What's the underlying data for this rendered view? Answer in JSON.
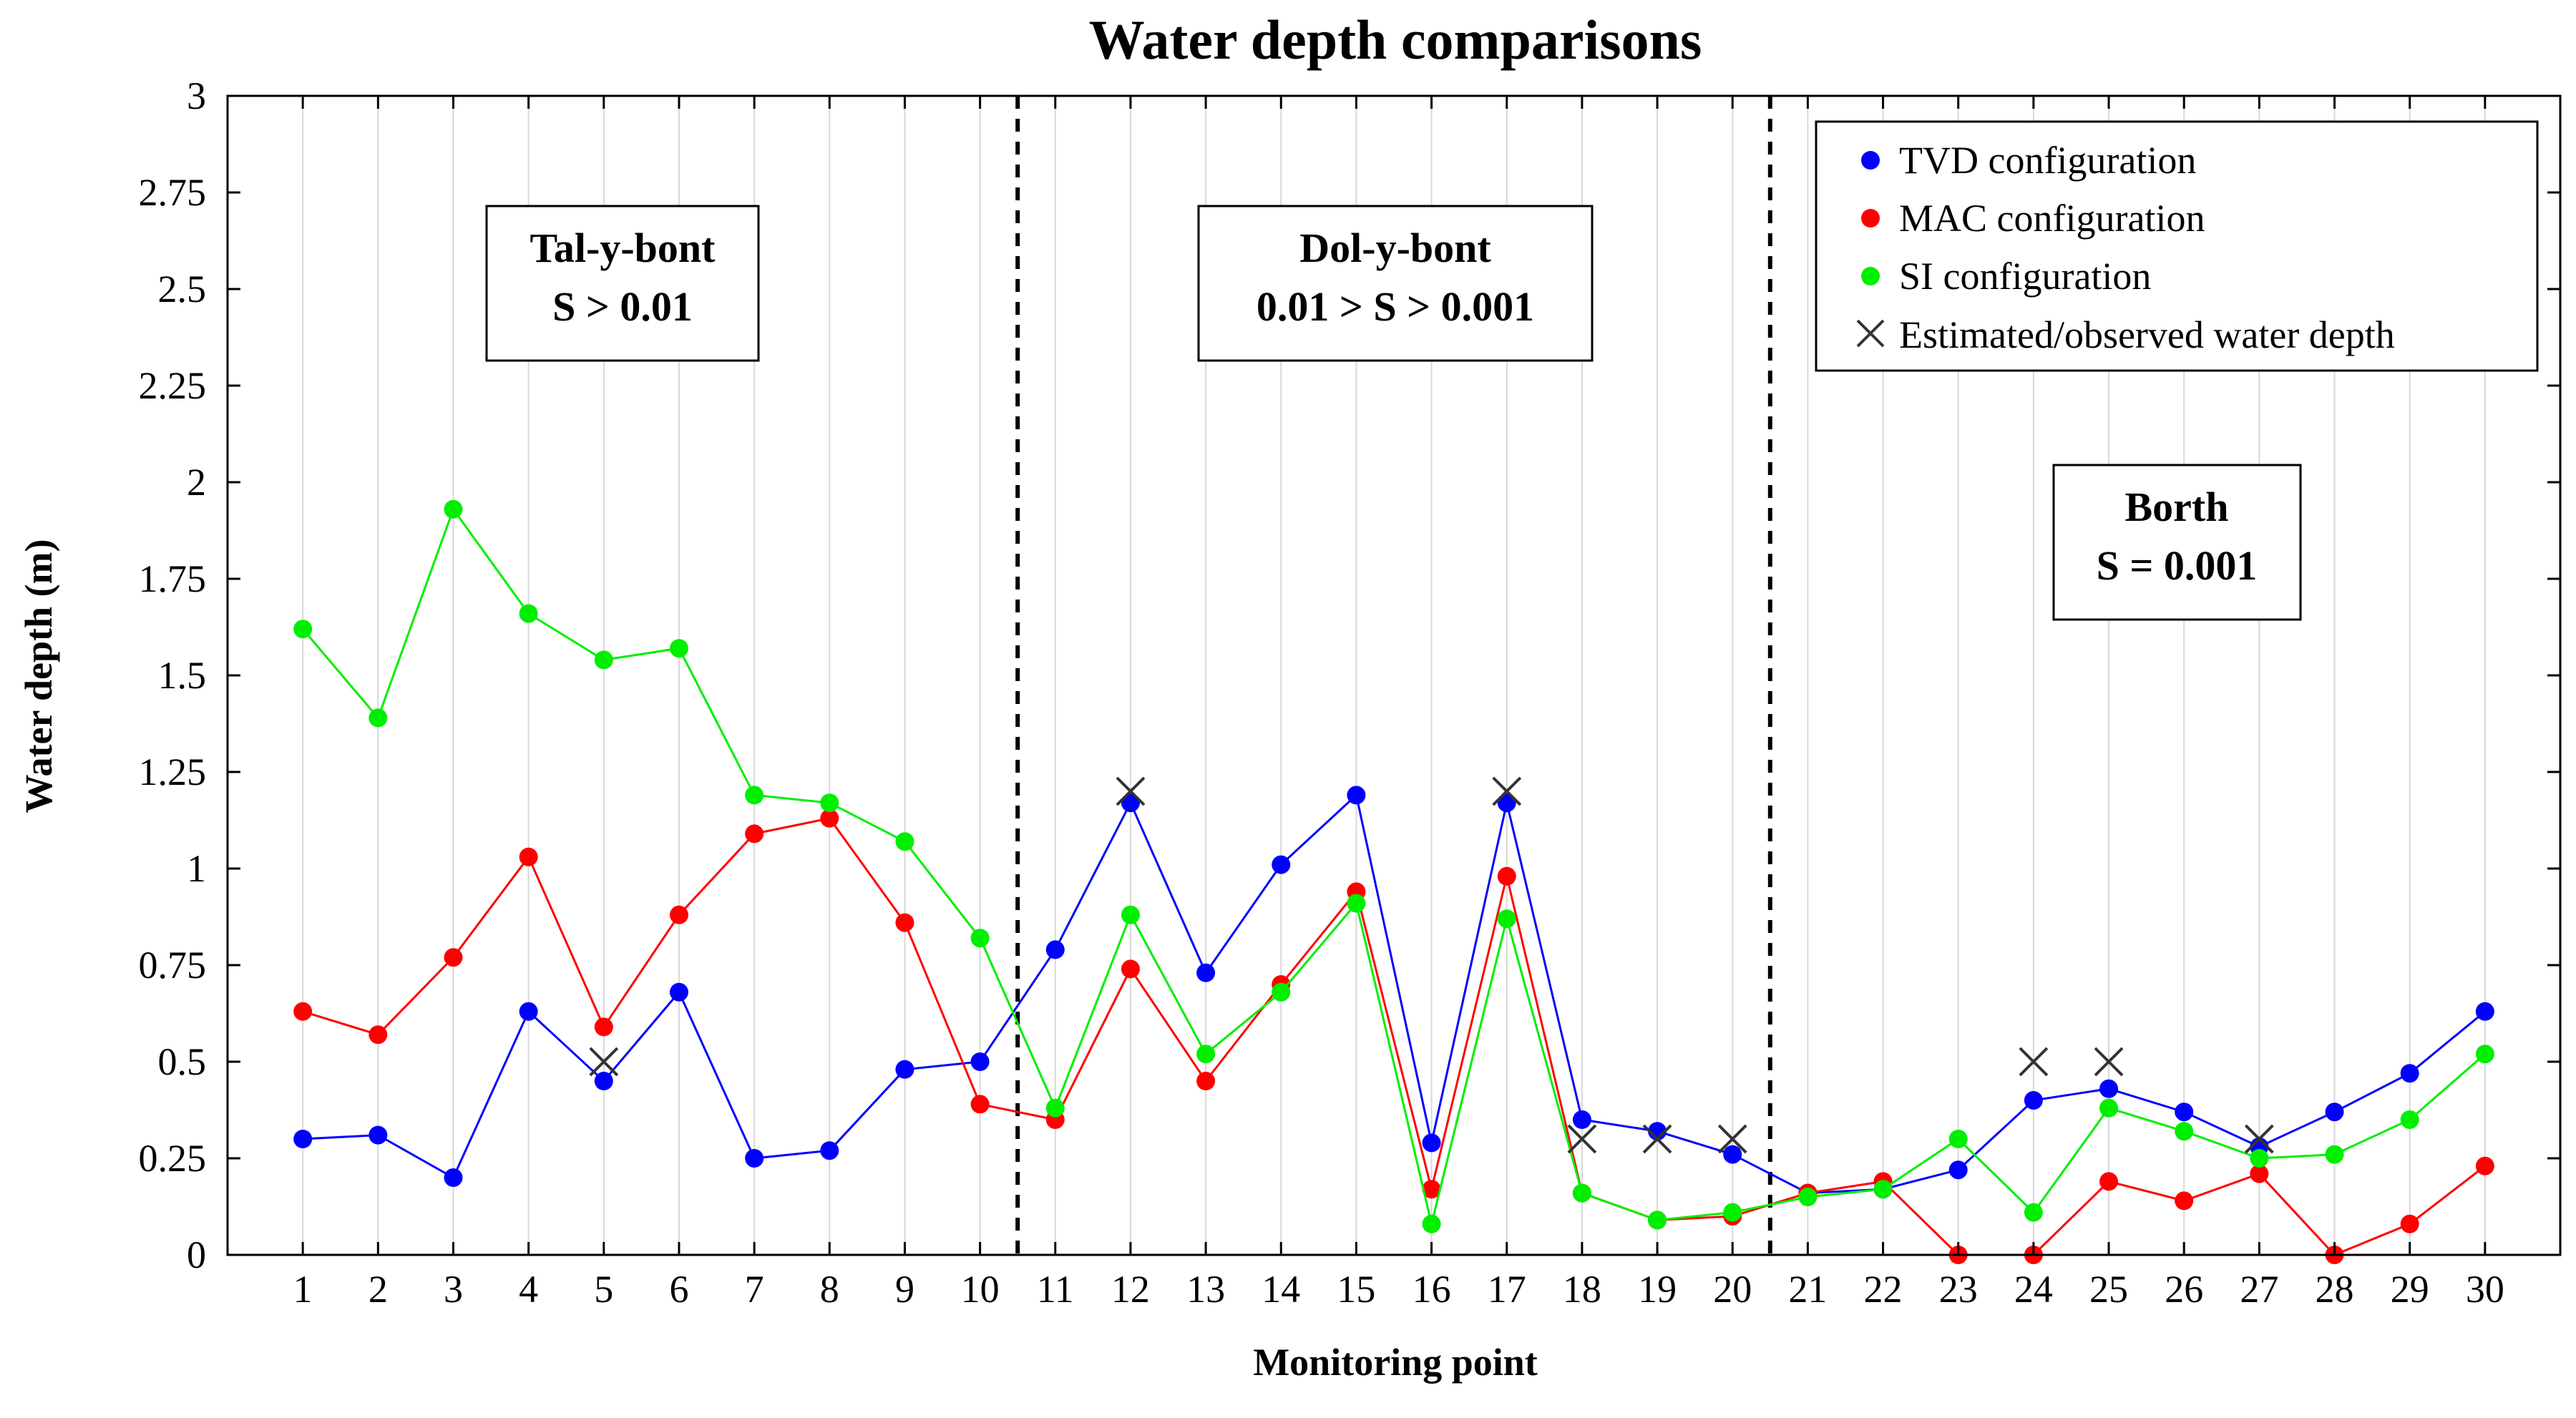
{
  "chart_data": {
    "type": "line",
    "title": "Water depth comparisons",
    "xlabel": "Monitoring point",
    "ylabel": "Water depth (m)",
    "x": [
      1,
      2,
      3,
      4,
      5,
      6,
      7,
      8,
      9,
      10,
      11,
      12,
      13,
      14,
      15,
      16,
      17,
      18,
      19,
      20,
      21,
      22,
      23,
      24,
      25,
      26,
      27,
      28,
      29,
      30
    ],
    "xlim": [
      0,
      31
    ],
    "ylim": [
      0,
      3
    ],
    "yticks": [
      0,
      0.25,
      0.5,
      0.75,
      1,
      1.25,
      1.5,
      1.75,
      2,
      2.25,
      2.5,
      2.75,
      3
    ],
    "ytick_labels": [
      "0",
      "0.25",
      "0.5",
      "0.75",
      "1",
      "1.25",
      "1.5",
      "1.75",
      "2",
      "2.25",
      "2.5",
      "2.75",
      "3"
    ],
    "grid": "vertical",
    "series": [
      {
        "name": "TVD configuration",
        "color": "#0000ff",
        "marker": "circle",
        "values": [
          0.3,
          0.31,
          0.2,
          0.63,
          0.45,
          0.68,
          0.25,
          0.27,
          0.48,
          0.5,
          0.79,
          1.17,
          0.73,
          1.01,
          1.19,
          0.29,
          1.17,
          0.35,
          0.32,
          0.26,
          0.16,
          0.17,
          0.22,
          0.4,
          0.43,
          0.37,
          0.28,
          0.37,
          0.47,
          0.63
        ]
      },
      {
        "name": "MAC configuration",
        "color": "#ff0000",
        "marker": "circle",
        "values": [
          0.63,
          0.57,
          0.77,
          1.03,
          0.59,
          0.88,
          1.09,
          1.13,
          0.86,
          0.39,
          0.35,
          0.74,
          0.45,
          0.7,
          0.94,
          0.17,
          0.98,
          0.16,
          0.09,
          0.1,
          0.16,
          0.19,
          0.0,
          0.0,
          0.19,
          0.14,
          0.21,
          0.0,
          0.08,
          0.23
        ]
      },
      {
        "name": "SI configuration",
        "color": "#00ee00",
        "marker": "circle",
        "values": [
          1.62,
          1.39,
          1.93,
          1.66,
          1.54,
          1.57,
          1.19,
          1.17,
          1.07,
          0.82,
          0.38,
          0.88,
          0.52,
          0.68,
          0.91,
          0.08,
          0.87,
          0.16,
          0.09,
          0.11,
          0.15,
          0.17,
          0.3,
          0.11,
          0.38,
          0.32,
          0.25,
          0.26,
          0.35,
          0.52
        ]
      }
    ],
    "observed": {
      "name": "Estimated/observed water depth",
      "marker": "x",
      "points": [
        {
          "x": 5,
          "y": 0.5
        },
        {
          "x": 12,
          "y": 1.2
        },
        {
          "x": 17,
          "y": 1.2
        },
        {
          "x": 18,
          "y": 0.3
        },
        {
          "x": 19,
          "y": 0.3
        },
        {
          "x": 20,
          "y": 0.3
        },
        {
          "x": 24,
          "y": 0.5
        },
        {
          "x": 25,
          "y": 0.5
        },
        {
          "x": 27,
          "y": 0.3
        }
      ]
    },
    "dividers": [
      10.5,
      20.5
    ],
    "regions": [
      {
        "name": "Tal-y-bont",
        "condition": "S > 0.01"
      },
      {
        "name": "Dol-y-bont",
        "condition": "0.01 > S > 0.001"
      },
      {
        "name": "Borth",
        "condition": "S = 0.001"
      }
    ],
    "legend_location": "top-right"
  }
}
